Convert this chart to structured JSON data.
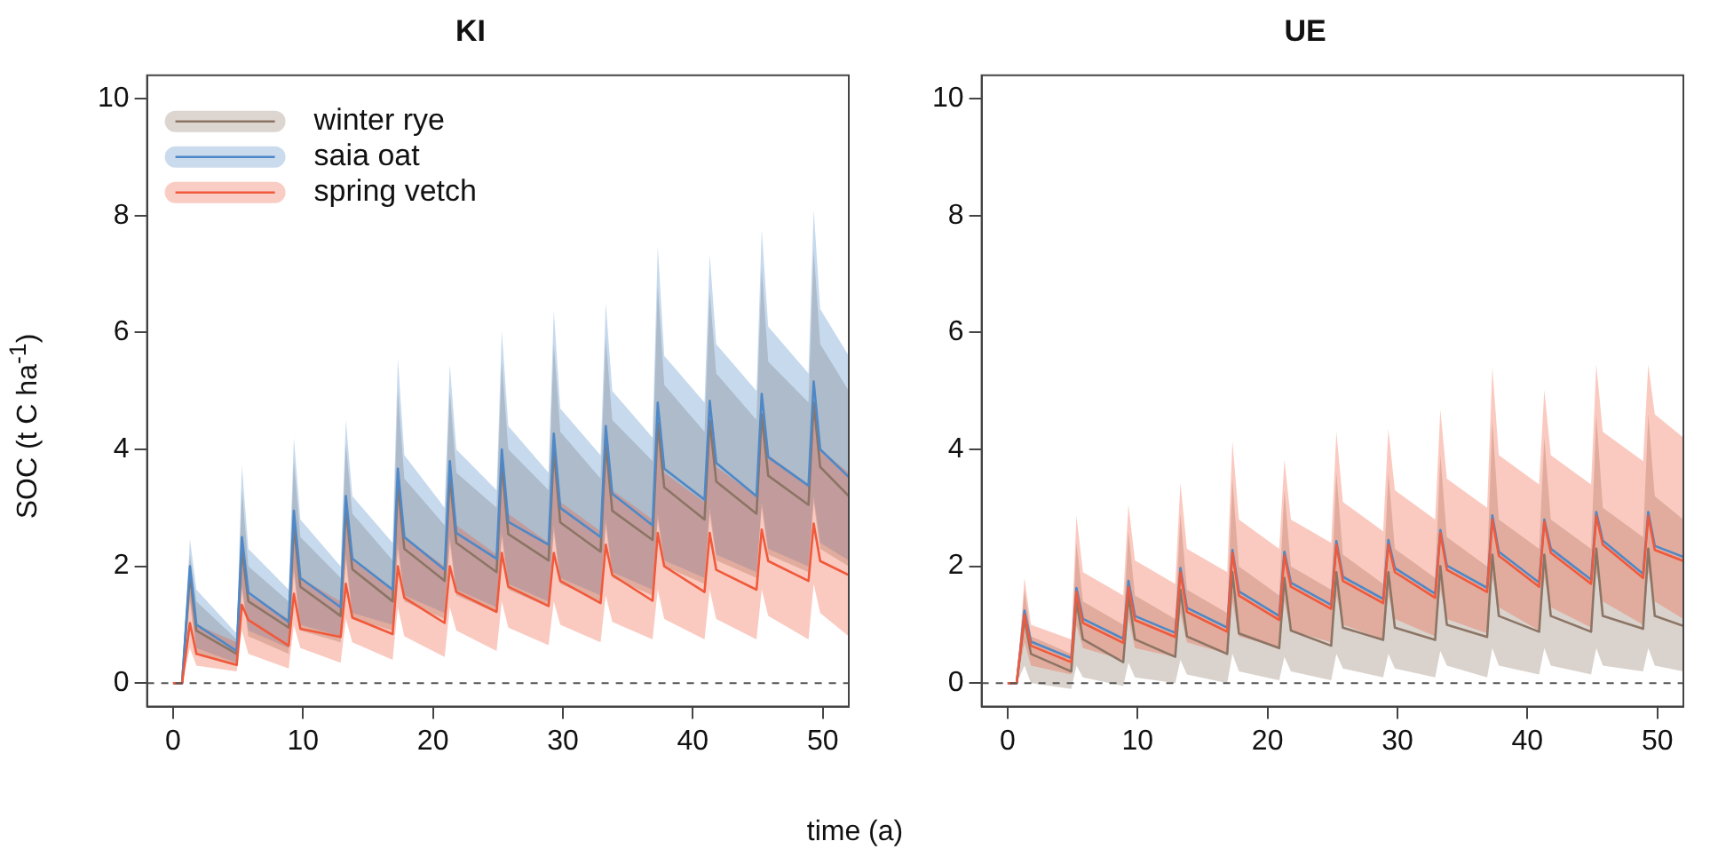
{
  "chart_data": [
    {
      "type": "line",
      "title": "KI",
      "xlabel": "time (a)",
      "ylabel": "SOC (t C ha$^{-1}$)",
      "legend": "top left",
      "grid": false,
      "marker": "none",
      "line_style": "solid",
      "xlim": [
        -2,
        52
      ],
      "xticks": [
        0,
        10,
        20,
        30,
        40,
        50
      ],
      "ylim": [
        -0.4,
        10.4
      ],
      "yticks": [
        0,
        2,
        4,
        6,
        8,
        10
      ],
      "ref_lines": [
        {
          "axis": "y",
          "value": 0,
          "color": "#555555",
          "line_style": "dashed"
        }
      ],
      "x": [
        0,
        0.7,
        1.3,
        1.8,
        4.9,
        5.3,
        5.8,
        8.9,
        9.3,
        9.8,
        12.9,
        13.3,
        13.8,
        16.9,
        17.3,
        17.8,
        20.9,
        21.3,
        21.8,
        24.9,
        25.3,
        25.8,
        28.9,
        29.3,
        29.8,
        32.9,
        33.3,
        33.8,
        36.9,
        37.3,
        37.8,
        40.9,
        41.3,
        41.8,
        44.9,
        45.3,
        45.8,
        48.9,
        49.3,
        49.8,
        52
      ],
      "series": [
        {
          "name": "winter rye",
          "color": "#8c7565",
          "values": [
            0,
            0,
            1.85,
            0.9,
            0.5,
            2.3,
            1.4,
            0.95,
            2.7,
            1.65,
            1.15,
            3.0,
            1.95,
            1.4,
            3.4,
            2.3,
            1.75,
            3.55,
            2.4,
            1.9,
            3.75,
            2.55,
            2.1,
            4.0,
            2.75,
            2.25,
            4.1,
            2.95,
            2.45,
            4.45,
            3.35,
            2.8,
            4.5,
            3.45,
            2.9,
            4.6,
            3.55,
            3.05,
            4.8,
            3.7,
            3.2
          ],
          "upper": [
            0,
            0,
            2.2,
            1.4,
            0.75,
            3.3,
            2.0,
            1.4,
            3.8,
            2.5,
            1.8,
            4.1,
            2.9,
            2.1,
            5.0,
            3.5,
            2.7,
            5.0,
            3.6,
            3.0,
            5.5,
            4.0,
            3.3,
            5.8,
            4.3,
            3.5,
            5.9,
            4.5,
            3.8,
            6.8,
            5.1,
            4.3,
            6.7,
            5.3,
            4.5,
            7.1,
            5.5,
            4.8,
            7.4,
            5.8,
            5.0
          ],
          "lower": [
            0,
            0,
            1.4,
            0.5,
            0.3,
            1.6,
            0.8,
            0.5,
            1.9,
            0.9,
            0.7,
            2.1,
            1.1,
            0.9,
            2.3,
            1.4,
            1.1,
            2.4,
            1.5,
            1.2,
            2.5,
            1.6,
            1.3,
            2.6,
            1.7,
            1.4,
            2.7,
            1.8,
            1.5,
            2.8,
            2.0,
            1.7,
            2.9,
            2.1,
            1.8,
            3.0,
            2.2,
            1.9,
            3.1,
            2.3,
            2.0
          ]
        },
        {
          "name": "saia oat",
          "color": "#4f88c6",
          "values": [
            0,
            0,
            2.0,
            1.0,
            0.55,
            2.5,
            1.55,
            1.05,
            2.95,
            1.8,
            1.3,
            3.2,
            2.13,
            1.6,
            3.67,
            2.5,
            1.94,
            3.8,
            2.57,
            2.13,
            4.0,
            2.76,
            2.37,
            4.27,
            3.0,
            2.5,
            4.4,
            3.24,
            2.7,
            4.8,
            3.67,
            3.14,
            4.83,
            3.77,
            3.2,
            4.95,
            3.87,
            3.38,
            5.16,
            4.0,
            3.53
          ],
          "upper": [
            0,
            0,
            2.47,
            1.6,
            0.85,
            3.72,
            2.3,
            1.6,
            4.2,
            2.8,
            2.0,
            4.5,
            3.2,
            2.4,
            5.55,
            3.9,
            3.0,
            5.45,
            4.0,
            3.3,
            6.03,
            4.4,
            3.6,
            6.37,
            4.7,
            3.9,
            6.5,
            5.0,
            4.2,
            7.47,
            5.6,
            4.8,
            7.33,
            5.8,
            5.0,
            7.76,
            6.1,
            5.3,
            8.1,
            6.4,
            5.6
          ],
          "lower": [
            0,
            0,
            1.5,
            0.6,
            0.35,
            1.7,
            0.9,
            0.6,
            2.0,
            1.0,
            0.8,
            2.2,
            1.2,
            1.0,
            2.4,
            1.5,
            1.2,
            2.5,
            1.6,
            1.3,
            2.6,
            1.7,
            1.4,
            2.7,
            1.8,
            1.5,
            2.8,
            1.9,
            1.6,
            2.9,
            2.1,
            1.8,
            3.0,
            2.2,
            1.9,
            3.1,
            2.3,
            2.0,
            3.2,
            2.4,
            2.1
          ]
        },
        {
          "name": "spring vetch",
          "color": "#f0593b",
          "values": [
            0,
            0,
            1.03,
            0.5,
            0.31,
            1.34,
            1.08,
            0.64,
            1.53,
            0.93,
            0.79,
            1.7,
            1.12,
            0.84,
            2.0,
            1.46,
            1.03,
            2.0,
            1.56,
            1.22,
            2.23,
            1.65,
            1.32,
            2.23,
            1.75,
            1.37,
            2.37,
            1.85,
            1.41,
            2.57,
            2.0,
            1.56,
            2.57,
            1.94,
            1.6,
            2.63,
            2.09,
            1.75,
            2.73,
            2.09,
            1.85
          ],
          "upper": [
            0,
            0,
            1.6,
            1.0,
            0.7,
            2.2,
            1.5,
            1.1,
            2.6,
            1.8,
            1.4,
            2.9,
            2.1,
            1.6,
            3.4,
            2.5,
            2.0,
            3.5,
            2.7,
            2.2,
            3.7,
            2.9,
            2.4,
            3.9,
            3.1,
            2.6,
            4.0,
            3.3,
            2.8,
            4.4,
            3.6,
            3.1,
            4.5,
            3.7,
            3.2,
            4.6,
            3.9,
            3.4,
            4.8,
            4.0,
            3.6
          ],
          "lower": [
            0,
            0,
            0.6,
            0.3,
            0.2,
            0.9,
            0.5,
            0.25,
            1.0,
            0.6,
            0.35,
            1.1,
            0.7,
            0.4,
            1.3,
            0.8,
            0.45,
            1.3,
            0.9,
            0.55,
            1.4,
            0.95,
            0.65,
            1.4,
            1.0,
            0.7,
            1.5,
            1.05,
            0.75,
            1.6,
            1.1,
            0.75,
            1.6,
            1.1,
            0.75,
            1.6,
            1.15,
            0.75,
            1.7,
            1.2,
            0.8
          ]
        }
      ]
    },
    {
      "type": "line",
      "title": "UE",
      "grid": false,
      "marker": "none",
      "line_style": "solid",
      "xlim": [
        -2,
        52
      ],
      "xticks": [
        0,
        10,
        20,
        30,
        40,
        50
      ],
      "ylim": [
        -0.4,
        10.4
      ],
      "yticks": [
        0,
        2,
        4,
        6,
        8,
        10
      ],
      "ref_lines": [
        {
          "axis": "y",
          "value": 0,
          "color": "#555555",
          "line_style": "dashed"
        }
      ],
      "x": [
        0,
        0.7,
        1.3,
        1.8,
        4.9,
        5.3,
        5.8,
        8.9,
        9.3,
        9.8,
        12.9,
        13.3,
        13.8,
        16.9,
        17.3,
        17.8,
        20.9,
        21.3,
        21.8,
        24.9,
        25.3,
        25.8,
        28.9,
        29.3,
        29.8,
        32.9,
        33.3,
        33.8,
        36.9,
        37.3,
        37.8,
        40.9,
        41.3,
        41.8,
        44.9,
        45.3,
        45.8,
        48.9,
        49.3,
        49.8,
        52
      ],
      "series": [
        {
          "color": "#8c7565",
          "values": [
            0,
            0,
            1.1,
            0.5,
            0.2,
            1.4,
            0.75,
            0.36,
            1.5,
            0.75,
            0.45,
            1.6,
            0.8,
            0.5,
            1.9,
            0.85,
            0.6,
            1.8,
            0.9,
            0.64,
            1.9,
            0.95,
            0.74,
            1.9,
            0.95,
            0.74,
            2.0,
            1.0,
            0.79,
            2.2,
            1.15,
            0.88,
            2.2,
            1.15,
            0.88,
            2.3,
            1.15,
            0.93,
            2.3,
            1.15,
            0.98
          ],
          "upper": [
            0,
            0,
            1.6,
            0.8,
            0.5,
            2.4,
            1.4,
            1.0,
            2.6,
            1.5,
            1.1,
            2.9,
            1.6,
            1.2,
            3.5,
            2.0,
            1.5,
            3.3,
            2.0,
            1.6,
            3.6,
            2.2,
            1.7,
            3.6,
            2.3,
            1.8,
            3.9,
            2.5,
            2.0,
            4.5,
            2.8,
            2.3,
            4.2,
            2.8,
            2.3,
            4.6,
            3.0,
            2.5,
            4.6,
            3.2,
            2.8
          ],
          "lower": [
            0,
            0,
            0.3,
            0,
            -0.1,
            0.3,
            0.1,
            -0.05,
            0.35,
            0.1,
            0,
            0.4,
            0.15,
            0,
            0.5,
            0.2,
            0.05,
            0.45,
            0.2,
            0.05,
            0.5,
            0.25,
            0.1,
            0.5,
            0.25,
            0.1,
            0.55,
            0.3,
            0.1,
            0.6,
            0.3,
            0.15,
            0.6,
            0.3,
            0.15,
            0.6,
            0.3,
            0.2,
            0.6,
            0.3,
            0.2
          ]
        },
        {
          "color": "#4f88c6",
          "values": [
            0,
            0,
            1.24,
            0.71,
            0.43,
            1.63,
            1.1,
            0.76,
            1.75,
            1.15,
            0.86,
            1.97,
            1.29,
            0.95,
            2.28,
            1.57,
            1.15,
            2.25,
            1.72,
            1.34,
            2.43,
            1.82,
            1.44,
            2.45,
            1.97,
            1.53,
            2.62,
            2.01,
            1.63,
            2.87,
            2.25,
            1.72,
            2.8,
            2.3,
            1.77,
            2.93,
            2.44,
            1.87,
            2.93,
            2.35,
            2.16
          ]
        },
        {
          "color": "#f0593b",
          "values": [
            0,
            0,
            1.17,
            0.64,
            0.36,
            1.56,
            1.03,
            0.69,
            1.65,
            1.08,
            0.79,
            1.9,
            1.22,
            0.88,
            2.23,
            1.5,
            1.08,
            2.18,
            1.65,
            1.27,
            2.37,
            1.75,
            1.37,
            2.37,
            1.9,
            1.46,
            2.57,
            1.94,
            1.56,
            2.8,
            2.18,
            1.65,
            2.76,
            2.23,
            1.7,
            2.86,
            2.37,
            1.8,
            2.86,
            2.28,
            2.09
          ],
          "upper": [
            0,
            0,
            1.8,
            1.0,
            0.75,
            2.86,
            1.9,
            1.5,
            3.05,
            2.1,
            1.7,
            3.43,
            2.3,
            1.9,
            4.15,
            2.8,
            2.3,
            3.82,
            2.8,
            2.4,
            4.3,
            3.1,
            2.6,
            4.35,
            3.3,
            2.8,
            4.68,
            3.5,
            3.0,
            5.4,
            3.9,
            3.4,
            5.02,
            3.9,
            3.4,
            5.45,
            4.3,
            3.8,
            5.45,
            4.6,
            4.2
          ],
          "lower": [
            0,
            0,
            0.7,
            0.3,
            0.15,
            1.0,
            0.6,
            0.4,
            1.1,
            0.6,
            0.45,
            1.2,
            0.7,
            0.5,
            1.4,
            0.8,
            0.6,
            1.4,
            0.9,
            0.7,
            1.5,
            1.0,
            0.75,
            1.5,
            1.1,
            0.8,
            1.6,
            1.1,
            0.85,
            1.8,
            1.3,
            0.9,
            1.8,
            1.3,
            0.95,
            1.9,
            1.4,
            1.0,
            1.9,
            1.4,
            1.1
          ]
        }
      ]
    }
  ]
}
